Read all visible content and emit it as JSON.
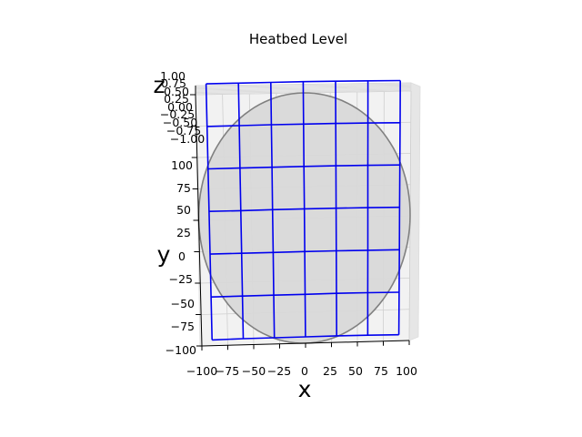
{
  "chart_data": {
    "type": "surface_wireframe_3d",
    "title": "Heatbed Level",
    "xlabel": "x",
    "ylabel": "y",
    "zlabel": "z",
    "xlim": [
      -100,
      100
    ],
    "ylim": [
      -100,
      100
    ],
    "zlim": [
      -1,
      1
    ],
    "x_ticks": [
      "−100",
      "−75",
      "−50",
      "−25",
      "0",
      "25",
      "50",
      "75",
      "100"
    ],
    "y_ticks": [
      "−100",
      "−75",
      "−50",
      "−25",
      "0",
      "25",
      "50",
      "75",
      "100"
    ],
    "z_ticks": [
      "−1.00",
      "−0.75",
      "−0.50",
      "−0.25",
      "0.00",
      "0.25",
      "0.50",
      "0.75",
      "1.00"
    ],
    "grid": true,
    "bed_circle": {
      "center": [
        0,
        0
      ],
      "radius": 100,
      "fill": "#d8d8d8",
      "edge": "#808080"
    },
    "mesh_color": "#0000ee",
    "mesh": {
      "x": [
        -90,
        -60,
        -30,
        0,
        30,
        60,
        90
      ],
      "y": [
        -95,
        -61,
        -27,
        7,
        41,
        75,
        109
      ],
      "z": [
        [
          -0.1,
          -0.02,
          0.0,
          0.02,
          0.05,
          0.02,
          -0.05
        ],
        [
          -0.05,
          -0.02,
          0.0,
          0.02,
          0.05,
          0.03,
          -0.02
        ],
        [
          -0.02,
          0.0,
          0.02,
          0.05,
          0.05,
          0.02,
          0.0
        ],
        [
          -0.02,
          0.0,
          0.05,
          0.08,
          0.08,
          0.05,
          0.0
        ],
        [
          -0.05,
          -0.02,
          0.02,
          0.05,
          0.05,
          0.02,
          -0.02
        ],
        [
          -0.1,
          -0.05,
          0.0,
          0.02,
          0.02,
          0.0,
          -0.05
        ],
        [
          -0.12,
          -0.08,
          -0.05,
          -0.02,
          -0.02,
          -0.05,
          -0.1
        ]
      ]
    }
  }
}
